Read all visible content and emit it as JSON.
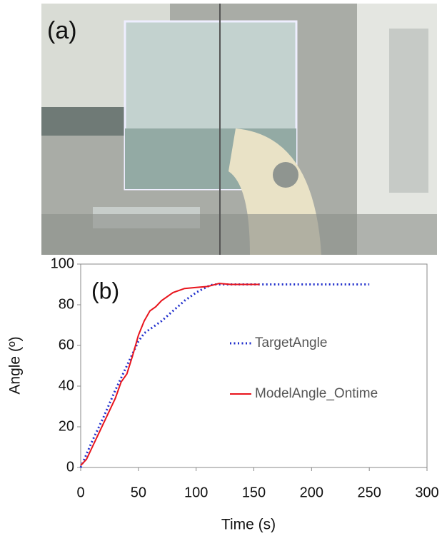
{
  "panel_a": {
    "label": "(a)"
  },
  "chart_data": {
    "type": "line",
    "panel_label": "(b)",
    "xlabel": "Time (s)",
    "ylabel": "Angle (º)",
    "xlim": [
      0,
      300
    ],
    "xticks": [
      0,
      50,
      100,
      150,
      200,
      250,
      300
    ],
    "ylim": [
      0,
      100
    ],
    "yticks": [
      0,
      20,
      40,
      60,
      80,
      100
    ],
    "series": [
      {
        "name": "TargetAngle",
        "color": "#1f2ecc",
        "style": "dotted",
        "x": [
          0,
          10,
          20,
          30,
          40,
          50,
          55,
          60,
          70,
          80,
          90,
          100,
          110,
          115,
          150,
          200,
          250
        ],
        "values": [
          0,
          13,
          25,
          38,
          50,
          62,
          66,
          68,
          72,
          77,
          82,
          86,
          89,
          90,
          90,
          90,
          90
        ]
      },
      {
        "name": "ModelAngle_Ontime",
        "color": "#e8141c",
        "style": "solid",
        "x": [
          0,
          5,
          10,
          15,
          20,
          25,
          30,
          35,
          40,
          45,
          50,
          55,
          60,
          65,
          70,
          80,
          90,
          100,
          110,
          120,
          130,
          140,
          155
        ],
        "values": [
          1,
          4,
          10,
          16,
          22,
          28,
          34,
          42,
          46,
          55,
          65,
          72,
          77,
          79,
          82,
          86,
          88,
          88.5,
          89,
          90.5,
          90,
          90,
          90
        ]
      }
    ]
  }
}
